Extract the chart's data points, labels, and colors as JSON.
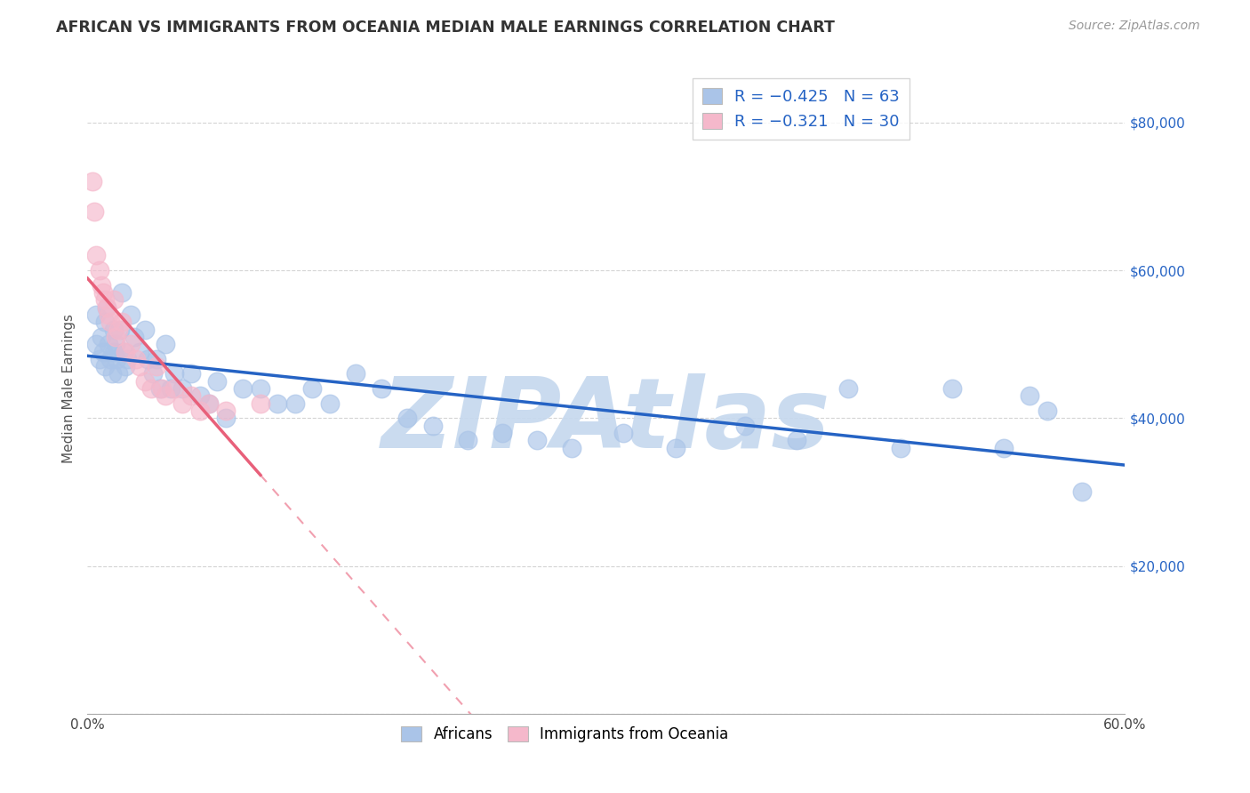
{
  "title": "AFRICAN VS IMMIGRANTS FROM OCEANIA MEDIAN MALE EARNINGS CORRELATION CHART",
  "source": "Source: ZipAtlas.com",
  "ylabel_label": "Median Male Earnings",
  "ylabel_ticks": [
    0,
    20000,
    40000,
    60000,
    80000
  ],
  "ylabel_tick_labels": [
    "",
    "$20,000",
    "$40,000",
    "$60,000",
    "$80,000"
  ],
  "xlim": [
    0.0,
    0.6
  ],
  "ylim": [
    0,
    88000
  ],
  "blue_color": "#aac4e8",
  "pink_color": "#f5b8cb",
  "blue_line_color": "#2563c4",
  "pink_line_color": "#e8607a",
  "background_color": "#ffffff",
  "grid_color": "#d0d0d0",
  "watermark_color": "#c5d8ee",
  "watermark_text": "ZIPAtlas",
  "africans_x": [
    0.005,
    0.005,
    0.007,
    0.008,
    0.009,
    0.01,
    0.01,
    0.011,
    0.012,
    0.013,
    0.014,
    0.015,
    0.015,
    0.016,
    0.017,
    0.018,
    0.019,
    0.02,
    0.021,
    0.022,
    0.023,
    0.025,
    0.027,
    0.03,
    0.033,
    0.035,
    0.038,
    0.04,
    0.042,
    0.045,
    0.048,
    0.05,
    0.055,
    0.06,
    0.065,
    0.07,
    0.075,
    0.08,
    0.09,
    0.1,
    0.11,
    0.12,
    0.13,
    0.14,
    0.155,
    0.17,
    0.185,
    0.2,
    0.22,
    0.24,
    0.26,
    0.28,
    0.31,
    0.34,
    0.38,
    0.41,
    0.44,
    0.47,
    0.5,
    0.53,
    0.545,
    0.555,
    0.575
  ],
  "africans_y": [
    54000,
    50000,
    48000,
    51000,
    49000,
    53000,
    47000,
    55000,
    50000,
    48000,
    46000,
    52000,
    49000,
    50000,
    48000,
    46000,
    52000,
    57000,
    49000,
    47000,
    48000,
    54000,
    51000,
    49000,
    52000,
    48000,
    46000,
    48000,
    44000,
    50000,
    44000,
    46000,
    44000,
    46000,
    43000,
    42000,
    45000,
    40000,
    44000,
    44000,
    42000,
    42000,
    44000,
    42000,
    46000,
    44000,
    40000,
    39000,
    37000,
    38000,
    37000,
    36000,
    38000,
    36000,
    39000,
    37000,
    44000,
    36000,
    44000,
    36000,
    43000,
    41000,
    30000
  ],
  "oceania_x": [
    0.003,
    0.004,
    0.005,
    0.007,
    0.008,
    0.009,
    0.01,
    0.011,
    0.012,
    0.013,
    0.015,
    0.016,
    0.018,
    0.02,
    0.022,
    0.025,
    0.028,
    0.03,
    0.033,
    0.037,
    0.04,
    0.043,
    0.045,
    0.05,
    0.055,
    0.06,
    0.065,
    0.07,
    0.08,
    0.1
  ],
  "oceania_y": [
    72000,
    68000,
    62000,
    60000,
    58000,
    57000,
    56000,
    55000,
    54000,
    53000,
    56000,
    51000,
    52000,
    53000,
    49000,
    50000,
    48000,
    47000,
    45000,
    44000,
    47000,
    44000,
    43000,
    44000,
    42000,
    43000,
    41000,
    42000,
    41000,
    42000
  ],
  "blue_intercept": 55000,
  "blue_slope": -45000,
  "pink_intercept": 57000,
  "pink_slope": -260000
}
